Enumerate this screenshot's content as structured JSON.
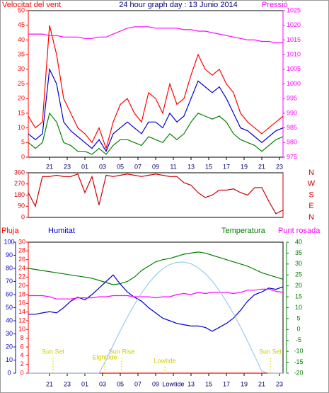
{
  "chart_data": [
    {
      "type": "line",
      "title": "24 hour graph day : 13 Junio 2014",
      "ylabel": "Velocitat del vent",
      "y2label": "Pressió",
      "x": [
        18.6,
        19.4,
        20.2,
        21.0,
        21.8,
        22.6,
        23.4,
        24.2,
        25.0,
        25.8,
        26.6,
        27.4,
        28.2,
        29.0,
        29.8,
        30.6,
        31.4,
        32.2,
        33.0,
        33.8,
        34.6,
        35.4,
        36.2,
        37.0,
        37.8,
        38.6,
        39.4,
        40.2,
        41.0,
        41.8,
        42.6,
        43.4,
        44.2,
        45.0,
        45.8,
        46.6,
        47.4
      ],
      "xlim": [
        18.6,
        47.4
      ],
      "xticks": [
        21,
        23,
        {
          "value": 25,
          "label": "01"
        },
        {
          "value": 27,
          "label": "03"
        },
        {
          "value": 29,
          "label": "05"
        },
        {
          "value": 31,
          "label": "07"
        },
        {
          "value": 33,
          "label": "09"
        },
        {
          "value": 35,
          "label": "11"
        },
        {
          "value": 37,
          "label": "13"
        },
        {
          "value": 39,
          "label": "15"
        },
        {
          "value": 41,
          "label": "17"
        },
        {
          "value": 43,
          "label": "19"
        },
        {
          "value": 45,
          "label": "21"
        },
        {
          "value": 47,
          "label": "23"
        }
      ],
      "ylim": [
        0,
        50
      ],
      "yticks": [
        0,
        5,
        10,
        15,
        20,
        25,
        30,
        35,
        40,
        45,
        50
      ],
      "y2lim": [
        975,
        1025
      ],
      "y2ticks": [
        975,
        980,
        985,
        990,
        995,
        1000,
        1005,
        1010,
        1015,
        1020,
        1025
      ],
      "series": [
        {
          "color": "#ff0000",
          "values": [
            14,
            10,
            12,
            45,
            35,
            20,
            15,
            10,
            8,
            5,
            10,
            3,
            12,
            18,
            20,
            15,
            12,
            22,
            20,
            15,
            25,
            18,
            20,
            28,
            35,
            30,
            28,
            30,
            25,
            22,
            15,
            12,
            10,
            8,
            10,
            12,
            14
          ]
        },
        {
          "color": "#0000cc",
          "values": [
            8,
            6,
            8,
            30,
            25,
            12,
            9,
            7,
            5,
            3,
            6,
            2,
            8,
            10,
            12,
            10,
            8,
            12,
            12,
            10,
            15,
            12,
            14,
            20,
            26,
            24,
            22,
            24,
            20,
            15,
            10,
            9,
            7,
            5,
            7,
            9,
            10
          ]
        },
        {
          "color": "#008000",
          "values": [
            5,
            3,
            5,
            15,
            12,
            5,
            4,
            2,
            2,
            1,
            3,
            1,
            4,
            6,
            6,
            5,
            4,
            7,
            6,
            5,
            8,
            6,
            8,
            12,
            15,
            14,
            13,
            14,
            12,
            8,
            6,
            5,
            4,
            2,
            4,
            6,
            7
          ]
        },
        {
          "color": "#ff00ff",
          "axis": "y2",
          "values": [
            1017,
            1017,
            1017,
            1016.5,
            1016.5,
            1016,
            1016,
            1016,
            1015.5,
            1015.5,
            1016,
            1016,
            1017,
            1018,
            1019,
            1019.5,
            1019.5,
            1019.5,
            1019,
            1019,
            1019,
            1019,
            1018.5,
            1018.5,
            1018,
            1018,
            1017.5,
            1017,
            1016.5,
            1016,
            1015.5,
            1015,
            1015,
            1014.5,
            1014.5,
            1014,
            1014
          ]
        }
      ]
    },
    {
      "type": "line",
      "x": [
        18.6,
        19.4,
        20.2,
        21.0,
        21.8,
        22.6,
        23.4,
        24.2,
        25.0,
        25.8,
        26.6,
        27.4,
        28.2,
        29.0,
        29.8,
        30.6,
        31.4,
        32.2,
        33.0,
        33.8,
        34.6,
        35.4,
        36.2,
        37.0,
        37.8,
        38.6,
        39.4,
        40.2,
        41.0,
        41.8,
        42.6,
        43.4,
        44.2,
        45.0,
        45.8,
        46.6,
        47.4
      ],
      "xlim": [
        18.6,
        47.4
      ],
      "ylim": [
        0,
        360
      ],
      "yticks": [
        0,
        90,
        180,
        270,
        360
      ],
      "y2lim": [
        0,
        360
      ],
      "y2ticks": [
        {
          "value": 360,
          "label": "N"
        },
        {
          "value": 270,
          "label": "W"
        },
        {
          "value": 180,
          "label": "S"
        },
        {
          "value": 90,
          "label": "E"
        },
        {
          "value": 0,
          "label": "N"
        }
      ],
      "series": [
        {
          "color": "#cc0000",
          "values": [
            200,
            90,
            330,
            330,
            340,
            330,
            330,
            350,
            200,
            330,
            100,
            340,
            330,
            340,
            350,
            340,
            330,
            340,
            350,
            340,
            330,
            330,
            280,
            260,
            200,
            160,
            180,
            220,
            220,
            230,
            200,
            180,
            240,
            240,
            130,
            30,
            60
          ]
        }
      ]
    },
    {
      "type": "line",
      "x": [
        18.6,
        19.4,
        20.2,
        21.0,
        21.8,
        22.6,
        23.4,
        24.2,
        25.0,
        25.8,
        26.6,
        27.4,
        28.2,
        29.0,
        29.8,
        30.6,
        31.4,
        32.2,
        33.0,
        33.8,
        34.6,
        35.4,
        36.2,
        37.0,
        37.8,
        38.6,
        39.4,
        40.2,
        41.0,
        41.8,
        42.6,
        43.4,
        44.2,
        45.0,
        45.8,
        46.6,
        47.4
      ],
      "xlim": [
        18.6,
        47.4
      ],
      "xticks": [
        21,
        23,
        {
          "value": 25,
          "label": "01"
        },
        {
          "value": 27,
          "label": "03"
        },
        {
          "value": 29,
          "label": "05"
        },
        {
          "value": 31,
          "label": "07"
        },
        {
          "value": 33,
          "label": "09"
        },
        {
          "value": 35,
          "label": "Lowtide"
        },
        {
          "value": 37,
          "label": "13"
        },
        {
          "value": 39,
          "label": "15"
        },
        {
          "value": 41,
          "label": "17"
        },
        {
          "value": 43,
          "label": "19"
        },
        {
          "value": 45,
          "label": "21"
        },
        {
          "value": 47,
          "label": "23"
        }
      ],
      "ylim": [
        0,
        100
      ],
      "yticks": [
        0,
        10,
        20,
        30,
        40,
        50,
        60,
        70,
        80,
        90,
        100
      ],
      "y3lim": [
        0,
        30
      ],
      "y3ticks": [
        0,
        2,
        4,
        6,
        8,
        10,
        12,
        14,
        16,
        18,
        20,
        22,
        24,
        26,
        28,
        30
      ],
      "y2lim": [
        -20,
        40
      ],
      "y2ticks": [
        -20,
        -15,
        -10,
        -5,
        0,
        5,
        10,
        15,
        20,
        25,
        30,
        35,
        40
      ],
      "annotations": [
        "Sun Set",
        "Eighttide",
        "Sun Rise",
        "Lowtide",
        "Sun Set"
      ],
      "series": [
        {
          "name": "Pluja",
          "color": "#ff0000",
          "axis": "y3",
          "values": [
            0,
            0,
            0,
            0,
            0,
            0,
            0,
            0,
            0,
            0,
            0,
            0,
            0,
            0,
            0,
            0,
            0,
            0,
            0,
            0,
            0,
            0,
            0,
            0,
            0,
            0,
            0,
            0,
            0,
            0,
            0,
            0,
            0,
            0,
            0,
            0,
            0
          ]
        },
        {
          "name": "Humitat",
          "color": "#0000cc",
          "values": [
            45,
            45,
            46,
            47,
            46,
            50,
            55,
            58,
            56,
            60,
            65,
            70,
            75,
            68,
            62,
            58,
            55,
            50,
            46,
            42,
            40,
            38,
            37,
            36,
            36,
            35,
            32,
            35,
            38,
            42,
            48,
            55,
            60,
            62,
            65,
            64,
            66
          ]
        },
        {
          "name": "Temperatura",
          "color": "#008000",
          "axis": "y2",
          "values": [
            28,
            27.5,
            27,
            26.5,
            26,
            25.5,
            25,
            24.5,
            24,
            23.5,
            22.5,
            21.5,
            20.5,
            21,
            22,
            24,
            27,
            29,
            31,
            32,
            32.5,
            33.5,
            34.5,
            35,
            35.5,
            35,
            34,
            33,
            32,
            31,
            30,
            29,
            27.5,
            26,
            25,
            24,
            23
          ]
        },
        {
          "name": "Punt rosada",
          "color": "#ff00ff",
          "axis": "y2",
          "values": [
            15.5,
            15.5,
            15.5,
            15,
            14,
            14,
            14,
            14.5,
            14.5,
            14.5,
            15,
            15,
            15.5,
            15.5,
            15.5,
            15,
            15,
            15,
            14.5,
            15,
            15,
            16,
            16.5,
            16,
            17,
            16.5,
            17,
            17,
            17,
            16.5,
            17,
            18,
            18,
            18.5,
            18.5,
            17.5,
            17
          ]
        },
        {
          "color": "#99ccee",
          "axis": "y2",
          "values": [
            -20,
            -20,
            -20,
            -20,
            -20,
            -20,
            -20,
            -20,
            -20,
            -20,
            -20,
            -13.9,
            -7.1,
            -0.5,
            5.7,
            11.5,
            16.7,
            21.2,
            24.9,
            27.8,
            29.8,
            30.8,
            30.9,
            30.1,
            28.3,
            25.7,
            22.2,
            17.8,
            12.8,
            7.2,
            1.1,
            -5.4,
            -12.2,
            -19.1,
            -20,
            -20,
            -20
          ]
        }
      ]
    }
  ]
}
